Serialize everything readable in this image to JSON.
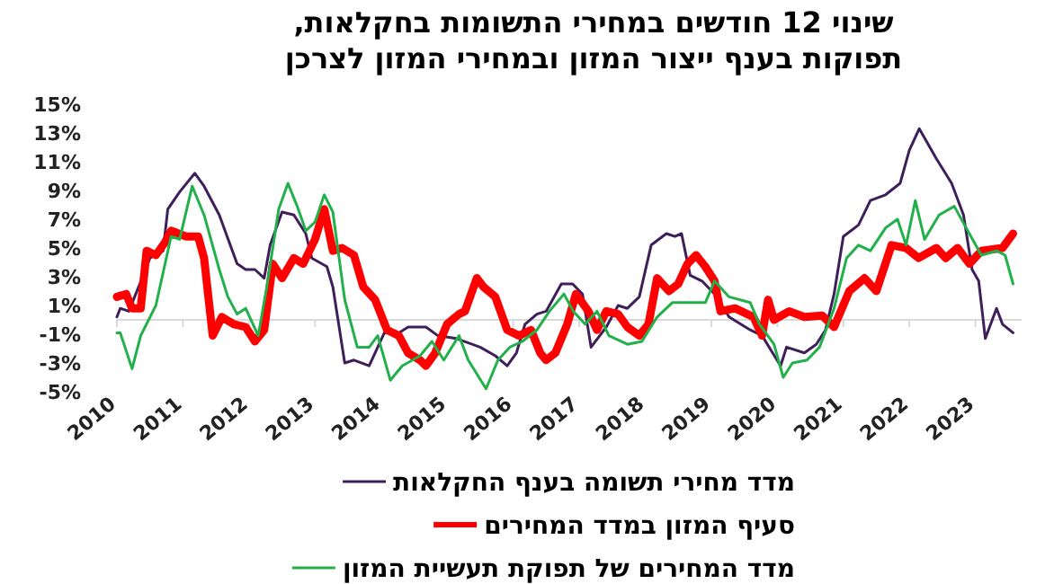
{
  "chart_data": {
    "type": "line",
    "title": "שינוי 12 חודשים במחירי התשומות בחקלאות,\nתפוקות בענף ייצור המזון ובמחירי המזון לצרכן",
    "xlim": [
      2010,
      2023.7
    ],
    "xticks": [
      2010,
      2011,
      2012,
      2013,
      2014,
      2015,
      2016,
      2017,
      2018,
      2019,
      2020,
      2021,
      2022,
      2023
    ],
    "ylim": [
      -5,
      15
    ],
    "yticks": [
      {
        "value": -5,
        "label": "-5%"
      },
      {
        "value": -3,
        "label": "-3%"
      },
      {
        "value": -1,
        "label": "-1%"
      },
      {
        "value": 1,
        "label": "1%"
      },
      {
        "value": 3,
        "label": "3%"
      },
      {
        "value": 5,
        "label": "5%"
      },
      {
        "value": 7,
        "label": "7%"
      },
      {
        "value": 9,
        "label": "9%"
      },
      {
        "value": 11,
        "label": "11%"
      },
      {
        "value": 13,
        "label": "13%"
      },
      {
        "value": 15,
        "label": "15%"
      }
    ],
    "legend": "bottom",
    "series": [
      {
        "name": "מדד מחירי תשומה בענף החקלאות",
        "color": "#3f1f5a",
        "x": [
          2010.0,
          2010.05,
          2010.18,
          2010.4,
          2010.5,
          2010.7,
          2010.77,
          2010.95,
          2011.18,
          2011.32,
          2011.55,
          2011.82,
          2011.95,
          2012.09,
          2012.23,
          2012.32,
          2012.5,
          2012.68,
          2012.86,
          2012.95,
          2013.18,
          2013.27,
          2013.45,
          2013.59,
          2013.82,
          2014.05,
          2014.27,
          2014.41,
          2014.68,
          2014.86,
          2015.14,
          2015.5,
          2015.73,
          2015.91,
          2016.05,
          2016.18,
          2016.36,
          2016.5,
          2016.73,
          2016.9,
          2017.05,
          2017.18,
          2017.41,
          2017.59,
          2017.73,
          2017.91,
          2018.09,
          2018.32,
          2018.45,
          2018.55,
          2018.68,
          2018.86,
          2019.05,
          2019.27,
          2019.59,
          2019.77,
          2020.05,
          2020.14,
          2020.41,
          2020.59,
          2020.73,
          2020.86,
          2021.0,
          2021.23,
          2021.41,
          2021.64,
          2021.86,
          2022.0,
          2022.15,
          2022.41,
          2022.64,
          2022.82,
          2022.95,
          2023.05,
          2023.15,
          2023.32,
          2023.41,
          2023.57
        ],
        "values": [
          0.2,
          0.8,
          0.6,
          3.1,
          4.3,
          4.8,
          7.7,
          8.9,
          10.2,
          9.3,
          7.3,
          3.9,
          3.5,
          3.5,
          2.9,
          5.2,
          7.5,
          7.3,
          6.0,
          4.3,
          3.7,
          2.3,
          -3.0,
          -2.8,
          -3.2,
          -0.9,
          -0.9,
          -0.5,
          -0.5,
          -1.1,
          -1.3,
          -1.9,
          -2.5,
          -3.2,
          -2.3,
          -0.3,
          0.4,
          0.6,
          2.5,
          2.5,
          1.8,
          -1.9,
          -0.5,
          1.0,
          0.8,
          1.6,
          5.2,
          6.0,
          5.8,
          6.0,
          3.1,
          2.7,
          1.8,
          0.2,
          -0.7,
          -1.1,
          -3.2,
          -1.9,
          -2.3,
          -1.7,
          -0.7,
          1.8,
          5.8,
          6.6,
          8.3,
          8.7,
          9.5,
          11.8,
          13.3,
          11.2,
          9.5,
          7.3,
          3.5,
          2.7,
          -1.3,
          0.8,
          -0.3,
          -0.9
        ]
      },
      {
        "name": "סעיף המזון במדד המחירים",
        "color": "#ff0000",
        "x": [
          2010.0,
          2010.14,
          2010.23,
          2010.36,
          2010.45,
          2010.59,
          2010.73,
          2010.82,
          2011.05,
          2011.23,
          2011.32,
          2011.45,
          2011.59,
          2011.77,
          2011.95,
          2012.09,
          2012.23,
          2012.36,
          2012.5,
          2012.68,
          2012.82,
          2013.0,
          2013.14,
          2013.27,
          2013.41,
          2013.59,
          2013.73,
          2013.91,
          2014.09,
          2014.27,
          2014.41,
          2014.59,
          2014.68,
          2014.82,
          2015.0,
          2015.18,
          2015.27,
          2015.45,
          2015.55,
          2015.73,
          2015.91,
          2016.09,
          2016.27,
          2016.41,
          2016.5,
          2016.64,
          2016.82,
          2016.95,
          2017.14,
          2017.27,
          2017.41,
          2017.59,
          2017.73,
          2017.91,
          2018.05,
          2018.18,
          2018.36,
          2018.5,
          2018.64,
          2018.77,
          2018.91,
          2019.05,
          2019.14,
          2019.36,
          2019.64,
          2019.77,
          2019.86,
          2019.95,
          2020.18,
          2020.41,
          2020.68,
          2020.86,
          2021.09,
          2021.32,
          2021.5,
          2021.73,
          2021.95,
          2022.14,
          2022.41,
          2022.55,
          2022.73,
          2022.91,
          2023.09,
          2023.41,
          2023.57
        ],
        "values": [
          1.6,
          1.8,
          0.8,
          0.8,
          4.8,
          4.5,
          5.4,
          6.2,
          5.8,
          5.8,
          4.3,
          -1.1,
          0.2,
          -0.3,
          -0.5,
          -1.5,
          -0.7,
          3.9,
          2.9,
          4.3,
          3.9,
          5.6,
          7.7,
          4.8,
          5.0,
          4.5,
          2.3,
          1.4,
          -0.7,
          -1.1,
          -2.3,
          -2.8,
          -3.2,
          -2.3,
          -0.3,
          0.4,
          0.6,
          2.9,
          2.3,
          1.6,
          -0.7,
          -1.1,
          -0.7,
          -2.3,
          -2.8,
          -2.3,
          -0.3,
          1.8,
          0.6,
          -0.7,
          0.6,
          0.4,
          -0.5,
          -1.1,
          -0.3,
          2.9,
          2.0,
          2.5,
          3.9,
          4.5,
          3.7,
          2.7,
          0.6,
          0.8,
          0.2,
          -1.1,
          1.4,
          0.0,
          0.6,
          0.2,
          0.3,
          -0.5,
          2.0,
          2.9,
          2.0,
          5.2,
          5.0,
          4.3,
          5.0,
          4.3,
          5.0,
          3.9,
          4.8,
          5.0,
          6.0
        ]
      },
      {
        "name": "מדד המחירים של תפוקת תעשיית המזון",
        "color": "#22b04b",
        "x": [
          2010.0,
          2010.05,
          2010.23,
          2010.36,
          2010.59,
          2010.82,
          2010.95,
          2011.14,
          2011.32,
          2011.55,
          2011.68,
          2011.82,
          2011.95,
          2012.14,
          2012.27,
          2012.45,
          2012.59,
          2012.73,
          2012.86,
          2013.0,
          2013.14,
          2013.27,
          2013.45,
          2013.64,
          2013.82,
          2013.95,
          2014.14,
          2014.32,
          2014.59,
          2014.77,
          2014.95,
          2015.18,
          2015.32,
          2015.59,
          2015.77,
          2015.95,
          2016.14,
          2016.36,
          2016.55,
          2016.77,
          2016.91,
          2017.09,
          2017.27,
          2017.45,
          2017.73,
          2017.95,
          2018.18,
          2018.41,
          2018.64,
          2018.91,
          2019.05,
          2019.27,
          2019.59,
          2019.73,
          2019.95,
          2020.09,
          2020.23,
          2020.45,
          2020.64,
          2020.86,
          2021.05,
          2021.23,
          2021.41,
          2021.64,
          2021.82,
          2021.95,
          2022.09,
          2022.23,
          2022.45,
          2022.68,
          2022.86,
          2023.09,
          2023.32,
          2023.45,
          2023.57
        ],
        "values": [
          -0.9,
          -0.9,
          -3.4,
          -1.1,
          1.0,
          5.8,
          5.6,
          9.3,
          7.3,
          3.5,
          1.6,
          0.4,
          0.8,
          -1.1,
          2.3,
          7.7,
          9.5,
          7.9,
          6.2,
          6.8,
          8.7,
          7.5,
          1.4,
          -1.9,
          -1.9,
          -1.1,
          -4.2,
          -3.2,
          -2.5,
          -1.5,
          -2.8,
          -1.1,
          -2.8,
          -4.8,
          -2.8,
          -1.9,
          -1.5,
          -0.7,
          0.6,
          1.8,
          0.6,
          -0.3,
          0.6,
          -1.1,
          -1.7,
          -1.5,
          0.2,
          1.2,
          1.2,
          1.2,
          2.7,
          1.6,
          1.2,
          -0.3,
          -1.7,
          -4.0,
          -3.0,
          -2.8,
          -1.9,
          0.8,
          4.3,
          5.2,
          4.8,
          6.4,
          7.0,
          5.2,
          8.3,
          5.6,
          7.3,
          7.9,
          6.4,
          4.5,
          4.8,
          4.5,
          2.5
        ]
      }
    ]
  }
}
